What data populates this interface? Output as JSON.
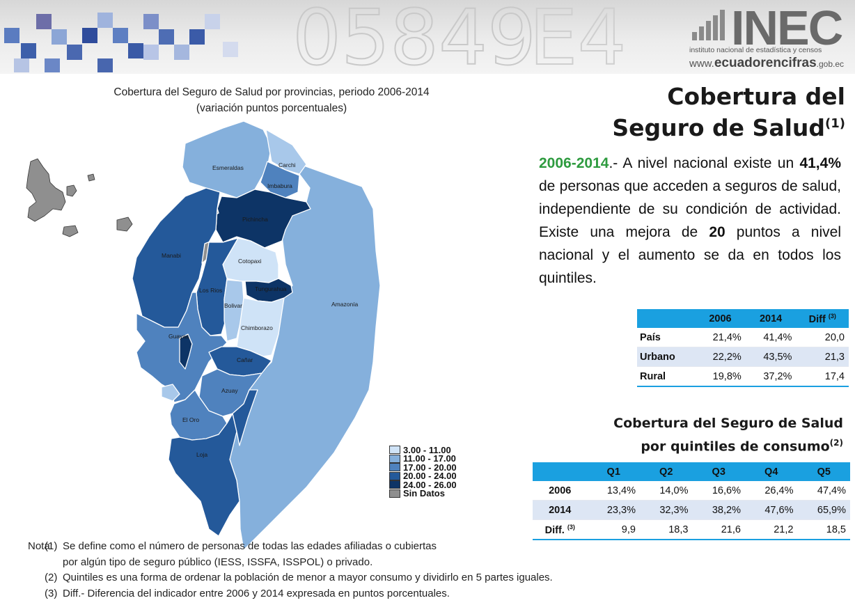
{
  "header": {
    "logo_main": "INEC",
    "logo_sub": "instituto nacional de estadística y censos",
    "logo_web_prefix": "www.",
    "logo_web_main": "ecuadorencifras",
    "logo_web_suffix": ".gob.ec"
  },
  "map_title": {
    "line1": "Cobertura del Seguro de Salud por provincias, periodo 2006-2014",
    "line2": "(variación puntos porcentuales)"
  },
  "main_title": {
    "line1": "Cobertura del",
    "line2": "Seguro de Salud",
    "sup": "(1)"
  },
  "paragraph": {
    "year": "2006-2014",
    "t1": ".- A nivel nacional existe un ",
    "pct": "41,4%",
    "t2": " de personas que acceden a seguros de salud, independiente de su condición de actividad. Existe una mejora de ",
    "pts": "20",
    "t3": " puntos a nivel nacional y el aumento se da en todos los quintiles."
  },
  "table_area": {
    "headers": [
      "",
      "2006",
      "2014",
      "Diff"
    ],
    "diff_sup": "(3)",
    "rows": [
      {
        "label": "País",
        "v2006": "21,4%",
        "v2014": "41,4%",
        "diff": "20,0"
      },
      {
        "label": "Urbano",
        "v2006": "22,2%",
        "v2014": "43,5%",
        "diff": "21,3"
      },
      {
        "label": "Rural",
        "v2006": "19,8%",
        "v2014": "37,2%",
        "diff": "17,4"
      }
    ]
  },
  "quintile_title": {
    "line1": "Cobertura del Seguro de Salud",
    "line2": "por quintiles de consumo",
    "sup": "(2)"
  },
  "table_quintiles": {
    "headers": [
      "",
      "Q1",
      "Q2",
      "Q3",
      "Q4",
      "Q5"
    ],
    "rows": [
      {
        "label": "2006",
        "values": [
          "13,4%",
          "14,0%",
          "16,6%",
          "26,4%",
          "47,4%"
        ]
      },
      {
        "label": "2014",
        "values": [
          "23,3%",
          "32,3%",
          "38,2%",
          "47,6%",
          "65,9%"
        ]
      },
      {
        "label": "Diff.",
        "sup": "(3)",
        "values": [
          "9,9",
          "18,3",
          "21,6",
          "21,2",
          "18,5"
        ]
      }
    ]
  },
  "legend": {
    "items": [
      {
        "label": "3.00 - 11.00",
        "color": "#cfe3f7"
      },
      {
        "label": "11.00 - 17.00",
        "color": "#85b0dc"
      },
      {
        "label": "17.00 - 20.00",
        "color": "#4f82be"
      },
      {
        "label": "20.00 - 24.00",
        "color": "#24599a"
      },
      {
        "label": "24.00 - 26.00",
        "color": "#0d3466"
      },
      {
        "label": "Sin Datos",
        "color": "#8f8f8f"
      }
    ]
  },
  "provinces": [
    {
      "name": "Esmeraldas",
      "class": "11.00 - 17.00"
    },
    {
      "name": "Carchi",
      "class": "11.00 - 17.00"
    },
    {
      "name": "Imbabura",
      "class": "17.00 - 20.00"
    },
    {
      "name": "Pichincha",
      "class": "24.00 - 26.00"
    },
    {
      "name": "Manabí",
      "class": "20.00 - 24.00"
    },
    {
      "name": "Cotopaxi",
      "class": "3.00 - 11.00"
    },
    {
      "name": "Los Ríos",
      "class": "20.00 - 24.00"
    },
    {
      "name": "Bolívar",
      "class": "11.00 - 17.00"
    },
    {
      "name": "Tungurahua",
      "class": "24.00 - 26.00"
    },
    {
      "name": "Chimborazo",
      "class": "3.00 - 11.00"
    },
    {
      "name": "Amazonía",
      "class": "11.00 - 17.00"
    },
    {
      "name": "Guayas",
      "class": "17.00 - 20.00"
    },
    {
      "name": "Cañar",
      "class": "20.00 - 24.00"
    },
    {
      "name": "Azuay",
      "class": "17.00 - 20.00"
    },
    {
      "name": "El Oro",
      "class": "17.00 - 20.00"
    },
    {
      "name": "Loja",
      "class": "20.00 - 24.00"
    },
    {
      "name": "Galápagos",
      "class": "Sin Datos"
    }
  ],
  "map_labels": {
    "esmeraldas": "Esmeraldas",
    "carchi": "Carchi",
    "imbabura": "Imbabura",
    "pichincha": "Pichincha",
    "manabi": "Manabi",
    "cotopaxi": "Cotopaxi",
    "losrios": "Los Rios",
    "bolivar": "Bolivar",
    "tungurahua": "Tungurahua",
    "chimborazo": "Chimborazo",
    "amazonia": "Amazonía",
    "guayas": "Guayas",
    "canar": "Cañar",
    "azuay": "Azuay",
    "eloro": "El Oro",
    "loja": "Loja"
  },
  "notes": {
    "label": "Nota:",
    "n1_num": "(1)",
    "n1_line1": "Se define como el número de personas de todas las edades afiliadas o cubiertas",
    "n1_line2": "por algún tipo de seguro público (IESS, ISSFA, ISSPOL) o privado.",
    "n2_num": "(2)",
    "n2": "Quintiles es una forma de ordenar la población de menor a mayor consumo y dividirlo en 5 partes iguales.",
    "n3_num": "(3)",
    "n3": "Diff.- Diferencia del indicador entre 2006 y 2014 expresada en puntos porcentuales."
  }
}
